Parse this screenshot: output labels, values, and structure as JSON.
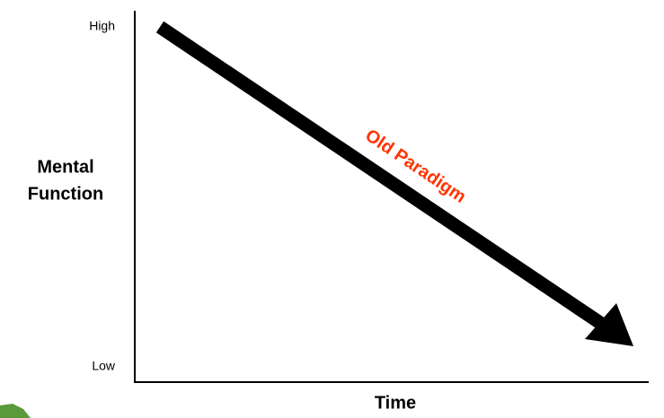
{
  "y_axis": {
    "high": "High",
    "low": "Low",
    "label_lines": [
      "Mental",
      "Function"
    ]
  },
  "x_axis": {
    "label": "Time"
  },
  "annotation": "Old Paradigm"
}
